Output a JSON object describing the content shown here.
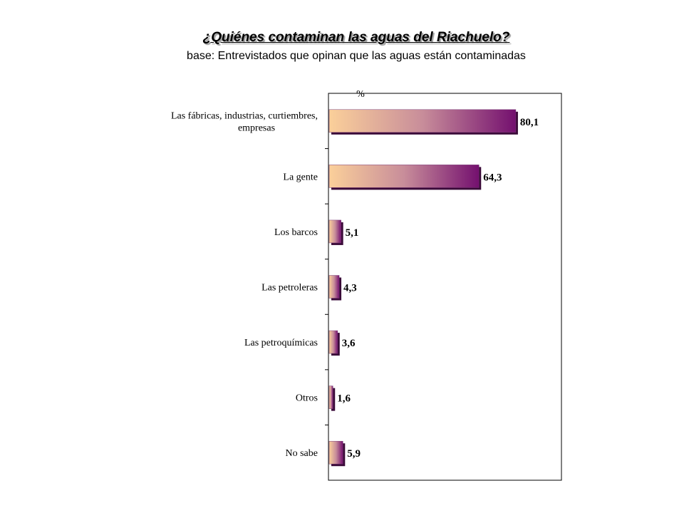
{
  "chart_data": {
    "type": "bar",
    "orientation": "horizontal",
    "title": "¿Quiénes contaminan las aguas del Riachuelo?",
    "subtitle": "base: Entrevistados que opinan que las aguas están contaminadas",
    "unit_label": "%",
    "categories": [
      [
        "Las fábricas, industrias, curtiembres,",
        "empresas"
      ],
      [
        "La gente"
      ],
      [
        "Los barcos"
      ],
      [
        "Las petroleras"
      ],
      [
        "Las petroquímicas"
      ],
      [
        "Otros"
      ],
      [
        "No sabe"
      ]
    ],
    "values": [
      80.1,
      64.3,
      5.1,
      4.3,
      3.6,
      1.6,
      5.9
    ],
    "value_labels": [
      "80,1",
      "64,3",
      "5,1",
      "4,3",
      "3,6",
      "1,6",
      "5,9"
    ],
    "xlim": [
      0,
      100
    ],
    "grid": false,
    "colors": {
      "bar_start": "#fbd09a",
      "bar_mid": "#c88d9a",
      "bar_end": "#74106f",
      "frame": "#000000"
    }
  }
}
